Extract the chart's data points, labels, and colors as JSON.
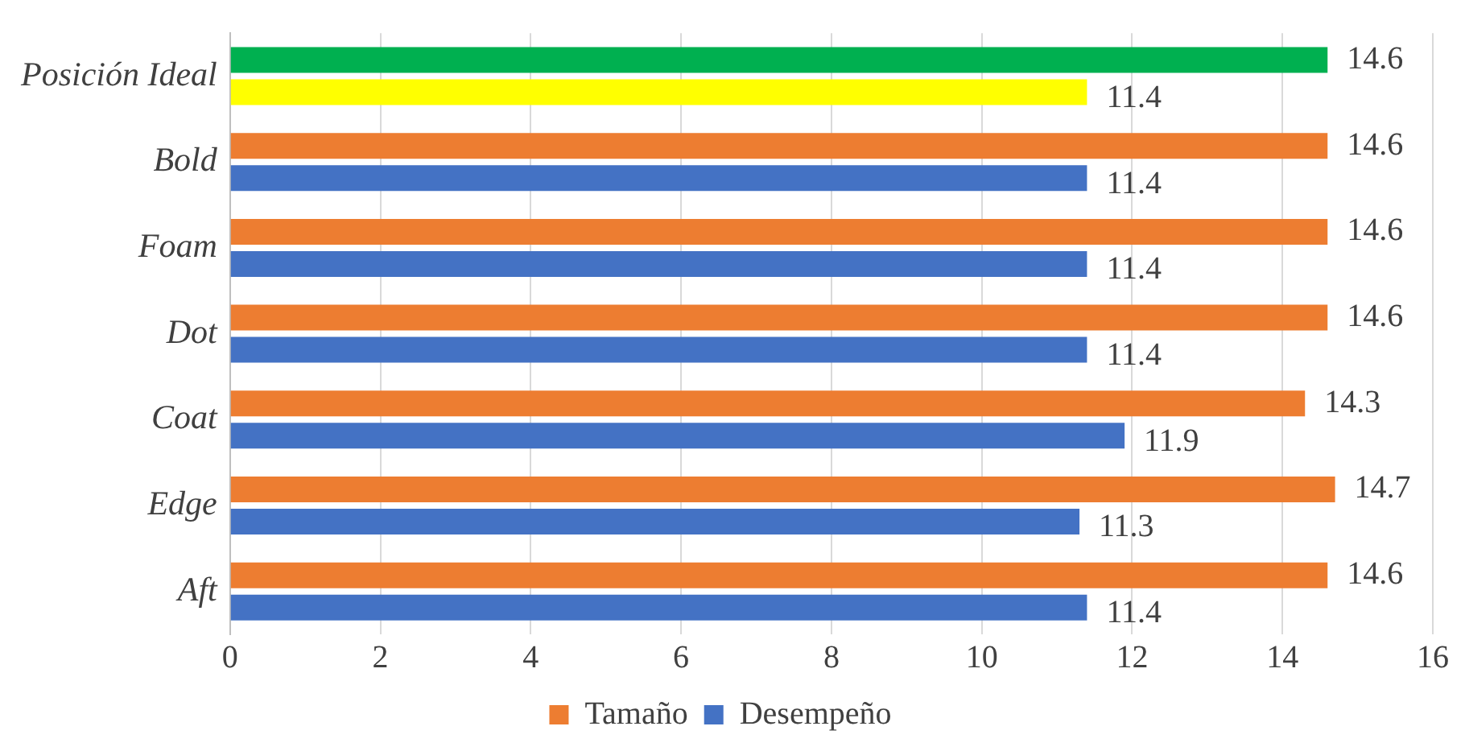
{
  "chart_data": {
    "type": "bar",
    "orientation": "horizontal",
    "categories": [
      "Posición Ideal",
      "Bold",
      "Foam",
      "Dot",
      "Coat",
      "Edge",
      "Aft"
    ],
    "series": [
      {
        "name": "Tamaño",
        "color": "#ed7d31",
        "colors": [
          "#00b050",
          "#ed7d31",
          "#ed7d31",
          "#ed7d31",
          "#ed7d31",
          "#ed7d31",
          "#ed7d31"
        ],
        "values": [
          14.6,
          14.6,
          14.6,
          14.6,
          14.3,
          14.7,
          14.6
        ]
      },
      {
        "name": "Desempeño",
        "color": "#4472c4",
        "colors": [
          "#ffff00",
          "#4472c4",
          "#4472c4",
          "#4472c4",
          "#4472c4",
          "#4472c4",
          "#4472c4"
        ],
        "values": [
          11.4,
          11.4,
          11.4,
          11.4,
          11.9,
          11.3,
          11.4
        ]
      }
    ],
    "xlim": [
      0,
      16
    ],
    "xticks": [
      0,
      2,
      4,
      6,
      8,
      10,
      12,
      14,
      16
    ],
    "grid": "x",
    "legend": "bottom",
    "data_labels": true
  }
}
